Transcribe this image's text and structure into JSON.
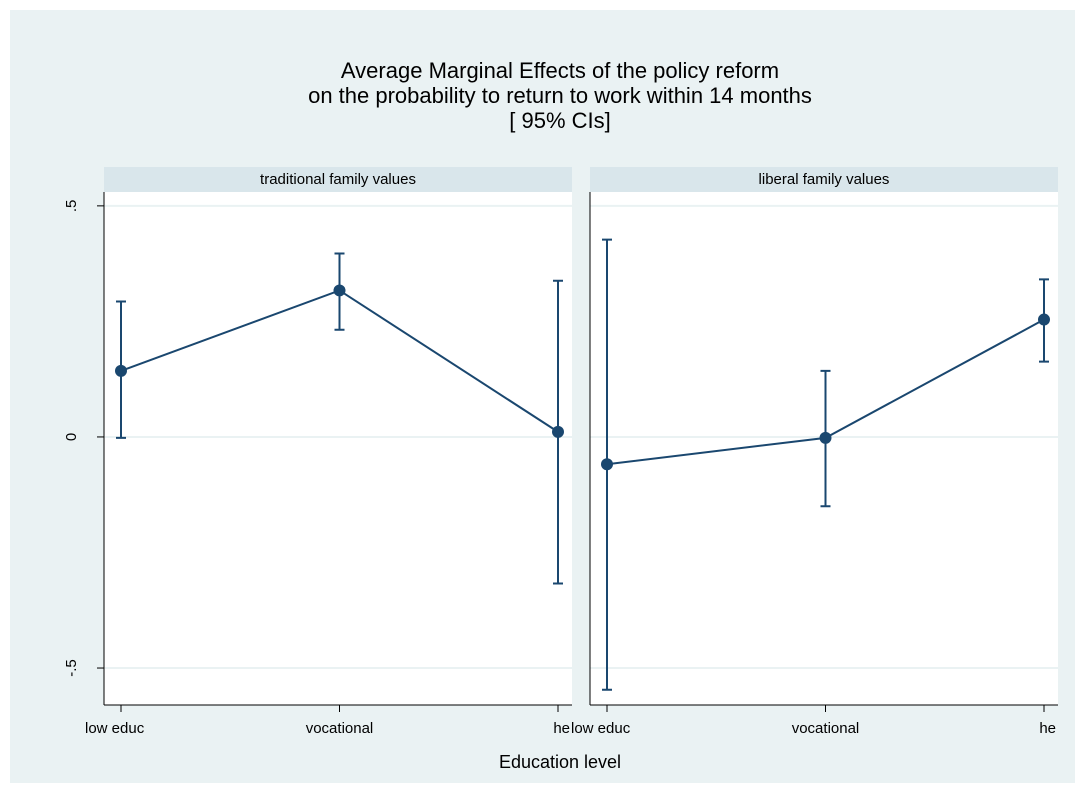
{
  "chart_data": {
    "type": "line",
    "title": [
      "Average Marginal Effects of the policy reform",
      "on the probability to return to work within 14 months",
      "[ 95% CIs]"
    ],
    "xlabel": "Education level",
    "categories": [
      "low educ",
      "vocational",
      "he"
    ],
    "color": "#1a476f",
    "grid": true,
    "ylim": [
      -0.58,
      0.53
    ],
    "yticks": [
      {
        "value": -0.5,
        "label": "-.5"
      },
      0,
      {
        "value": 0.5,
        "label": ".5"
      }
    ],
    "series": [
      {
        "name": "traditional family values",
        "values": [
          0.143,
          0.317,
          0.011
        ],
        "ci_low": [
          -0.002,
          0.232,
          -0.317
        ],
        "ci_high": [
          0.293,
          0.397,
          0.338
        ]
      },
      {
        "name": "liberal family values",
        "values": [
          -0.059,
          -0.002,
          0.254
        ],
        "ci_low": [
          -0.547,
          -0.15,
          0.163
        ],
        "ci_high": [
          0.427,
          0.143,
          0.341
        ]
      }
    ]
  }
}
